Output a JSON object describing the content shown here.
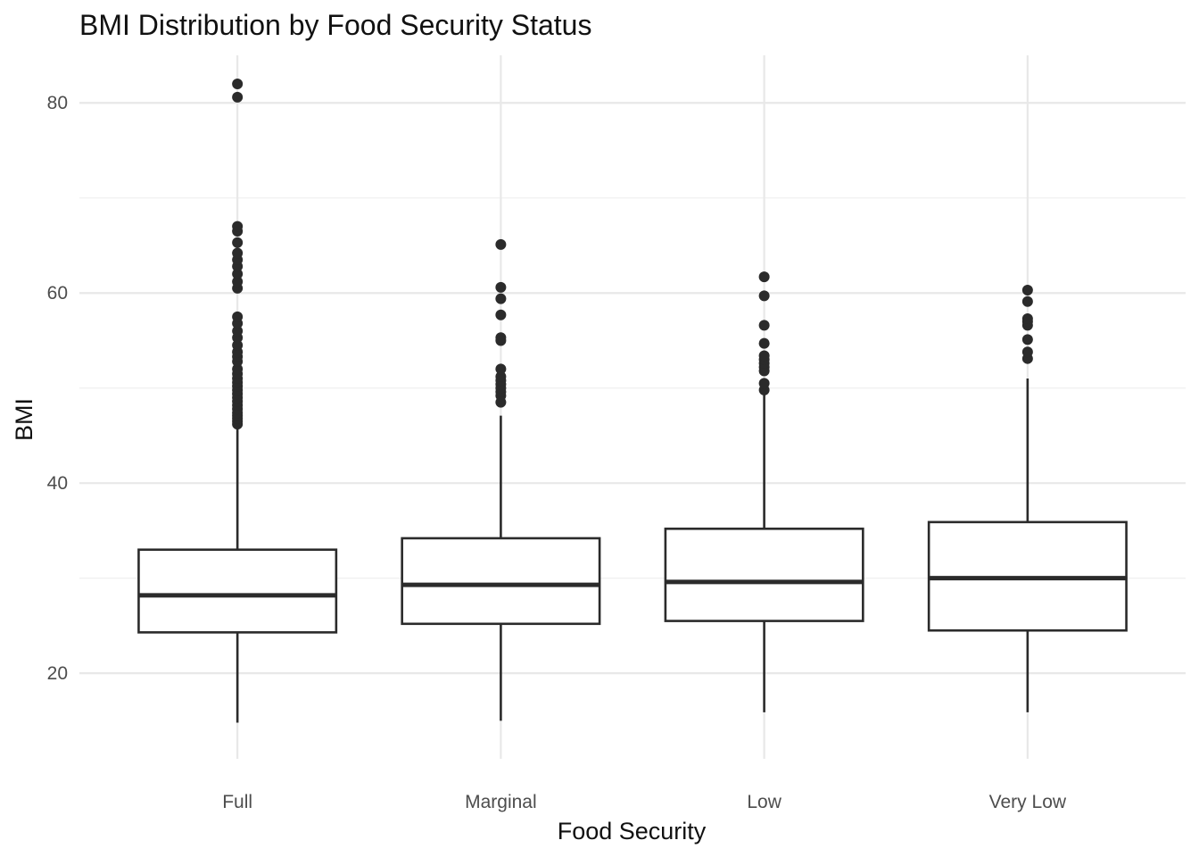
{
  "chart_data": {
    "type": "boxplot",
    "title": "BMI Distribution by Food Security Status",
    "xlabel": "Food Security",
    "ylabel": "BMI",
    "ylim": [
      11,
      85
    ],
    "yticks": [
      20,
      40,
      60,
      80
    ],
    "grid": true,
    "legend": "none",
    "categories": [
      "Full",
      "Marginal",
      "Low",
      "Very Low"
    ],
    "boxes": [
      {
        "category": "Full",
        "lower_whisker": 14.8,
        "q1": 24.3,
        "median": 28.2,
        "q3": 33.0,
        "upper_whisker": 46.0,
        "outliers": [
          46.2,
          46.5,
          46.8,
          47.1,
          47.4,
          47.8,
          48.2,
          48.6,
          49.0,
          49.4,
          49.8,
          50.2,
          50.6,
          51.0,
          51.5,
          52.0,
          52.8,
          53.3,
          53.8,
          54.5,
          55.3,
          56.0,
          56.8,
          57.5,
          60.5,
          61.2,
          62.0,
          62.8,
          63.5,
          64.2,
          65.3,
          66.5,
          67.0,
          80.6,
          82.0
        ]
      },
      {
        "category": "Marginal",
        "lower_whisker": 15.0,
        "q1": 25.2,
        "median": 29.3,
        "q3": 34.2,
        "upper_whisker": 47.1,
        "outliers": [
          48.5,
          49.2,
          49.6,
          50.0,
          50.4,
          50.8,
          51.2,
          52.0,
          55.0,
          55.3,
          57.7,
          59.4,
          60.6,
          65.1
        ]
      },
      {
        "category": "Low",
        "lower_whisker": 15.9,
        "q1": 25.5,
        "median": 29.6,
        "q3": 35.2,
        "upper_whisker": 49.5,
        "outliers": [
          49.8,
          50.5,
          51.8,
          52.2,
          52.6,
          53.0,
          53.4,
          54.7,
          56.6,
          59.7,
          61.7
        ]
      },
      {
        "category": "Very Low",
        "lower_whisker": 15.9,
        "q1": 24.5,
        "median": 30.0,
        "q3": 35.9,
        "upper_whisker": 51.0,
        "outliers": [
          53.1,
          53.8,
          55.1,
          56.6,
          57.0,
          57.3,
          59.1,
          60.3
        ]
      }
    ]
  }
}
